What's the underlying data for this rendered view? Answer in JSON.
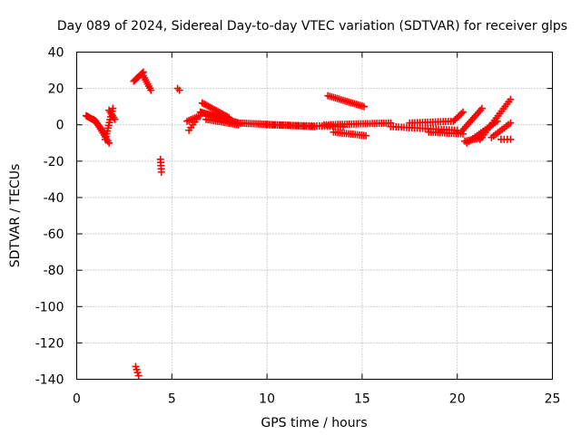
{
  "chart_data": {
    "type": "scatter",
    "title": "Day 089 of 2024, Sidereal Day-to-day VTEC variation (SDTVAR) for receiver glps",
    "xlabel": "GPS time / hours",
    "ylabel": "SDTVAR / TECUs",
    "xlim": [
      0,
      25
    ],
    "ylim": [
      -140,
      40
    ],
    "xticks": [
      "0",
      "5",
      "10",
      "15",
      "20",
      "25"
    ],
    "xtick_values": [
      0,
      5,
      10,
      15,
      20,
      25
    ],
    "yticks": [
      "40",
      "20",
      "0",
      "-20",
      "-40",
      "-60",
      "-80",
      "-100",
      "-120",
      "-140"
    ],
    "ytick_values": [
      40,
      20,
      0,
      -20,
      -40,
      -60,
      -80,
      -100,
      -120,
      -140
    ],
    "grid": true,
    "marker": "plus",
    "color": "#ff0000",
    "series": [
      {
        "name": "SDTVAR",
        "segments": [
          {
            "x0": 0.5,
            "x1": 1.0,
            "y0": 5,
            "y1": 2,
            "n": 10
          },
          {
            "x0": 1.0,
            "x1": 1.7,
            "y0": 2,
            "y1": -10,
            "n": 12
          },
          {
            "x0": 0.9,
            "x1": 1.5,
            "y0": 3,
            "y1": -5,
            "n": 8
          },
          {
            "x0": 1.5,
            "x1": 1.9,
            "y0": -8,
            "y1": 9,
            "n": 12
          },
          {
            "x0": 1.7,
            "x1": 2.0,
            "y0": 8,
            "y1": 3,
            "n": 6
          },
          {
            "x0": 3.0,
            "x1": 3.5,
            "y0": 24,
            "y1": 29,
            "n": 10
          },
          {
            "x0": 3.5,
            "x1": 3.9,
            "y0": 27,
            "y1": 19,
            "n": 8
          },
          {
            "x0": 3.1,
            "x1": 3.25,
            "y0": -133,
            "y1": -138,
            "n": 4
          },
          {
            "x0": 4.4,
            "x1": 4.45,
            "y0": -19,
            "y1": -26,
            "n": 5
          },
          {
            "x0": 5.3,
            "x1": 5.4,
            "y0": 20,
            "y1": 19,
            "n": 2
          },
          {
            "x0": 5.8,
            "x1": 6.5,
            "y0": 2,
            "y1": 5,
            "n": 8
          },
          {
            "x0": 5.9,
            "x1": 6.3,
            "y0": -3,
            "y1": 3,
            "n": 5
          },
          {
            "x0": 6.5,
            "x1": 8.5,
            "y0": 7,
            "y1": 1,
            "n": 28
          },
          {
            "x0": 6.6,
            "x1": 8.0,
            "y0": 12,
            "y1": 4,
            "n": 18
          },
          {
            "x0": 6.8,
            "x1": 8.5,
            "y0": 3,
            "y1": 0,
            "n": 18
          },
          {
            "x0": 8.5,
            "x1": 12.5,
            "y0": 1,
            "y1": -1,
            "n": 40
          },
          {
            "x0": 10.0,
            "x1": 14.0,
            "y0": 0,
            "y1": -1,
            "n": 30
          },
          {
            "x0": 13.2,
            "x1": 15.1,
            "y0": 16,
            "y1": 10,
            "n": 20
          },
          {
            "x0": 13.5,
            "x1": 15.2,
            "y0": -4,
            "y1": -6,
            "n": 16
          },
          {
            "x0": 13.0,
            "x1": 16.5,
            "y0": 0,
            "y1": 1,
            "n": 30
          },
          {
            "x0": 16.5,
            "x1": 20.0,
            "y0": -1,
            "y1": -3,
            "n": 26
          },
          {
            "x0": 18.5,
            "x1": 20.3,
            "y0": -4,
            "y1": -5,
            "n": 16
          },
          {
            "x0": 17.5,
            "x1": 19.8,
            "y0": 1,
            "y1": 2,
            "n": 18
          },
          {
            "x0": 19.8,
            "x1": 20.3,
            "y0": 2,
            "y1": 7,
            "n": 7
          },
          {
            "x0": 20.2,
            "x1": 21.3,
            "y0": -4,
            "y1": 9,
            "n": 14
          },
          {
            "x0": 20.4,
            "x1": 21.3,
            "y0": -9,
            "y1": -7,
            "n": 10
          },
          {
            "x0": 20.5,
            "x1": 22.1,
            "y0": -10,
            "y1": 2,
            "n": 16
          },
          {
            "x0": 21.2,
            "x1": 22.8,
            "y0": -8,
            "y1": 14,
            "n": 18
          },
          {
            "x0": 21.8,
            "x1": 22.8,
            "y0": -7,
            "y1": 1,
            "n": 10
          },
          {
            "x0": 22.3,
            "x1": 22.8,
            "y0": -8,
            "y1": -8,
            "n": 4
          }
        ]
      }
    ]
  }
}
